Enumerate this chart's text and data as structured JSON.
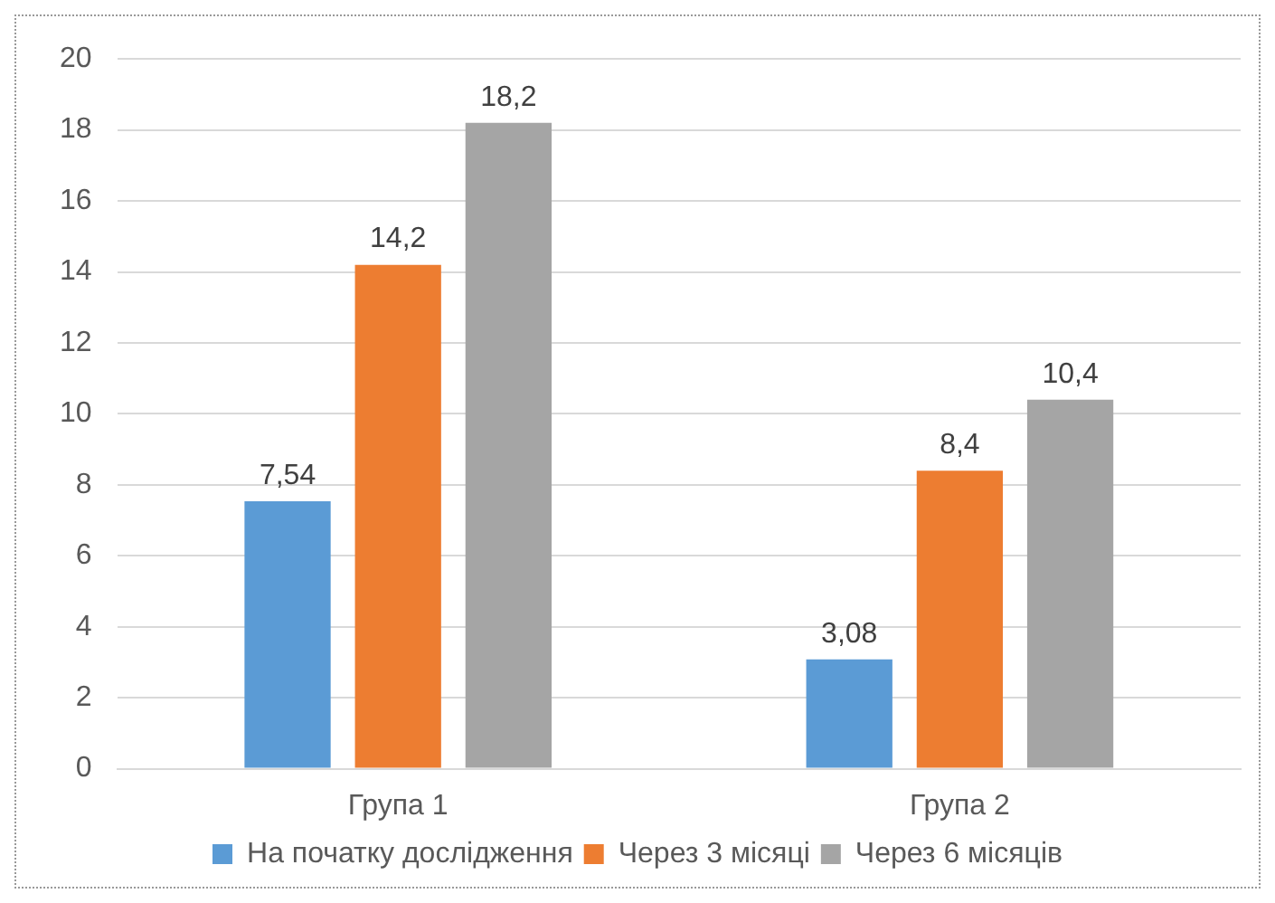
{
  "chart_data": {
    "type": "bar",
    "categories": [
      "Група 1",
      "Група 2"
    ],
    "series": [
      {
        "name": "На початку дослідження",
        "color": "#5b9bd5",
        "values": [
          7.54,
          3.08
        ],
        "value_labels": [
          "7,54",
          "3,08"
        ]
      },
      {
        "name": "Через 3 місяці",
        "color": "#ed7d31",
        "values": [
          14.2,
          8.4
        ],
        "value_labels": [
          "14,2",
          "8,4"
        ]
      },
      {
        "name": "Через 6 місяців",
        "color": "#a5a5a5",
        "values": [
          18.2,
          10.4
        ],
        "value_labels": [
          "18,2",
          "10,4"
        ]
      }
    ],
    "ylim": [
      0,
      20
    ],
    "yticks": [
      0,
      2,
      4,
      6,
      8,
      10,
      12,
      14,
      16,
      18,
      20
    ],
    "grid": "y",
    "legend": "bottom"
  }
}
